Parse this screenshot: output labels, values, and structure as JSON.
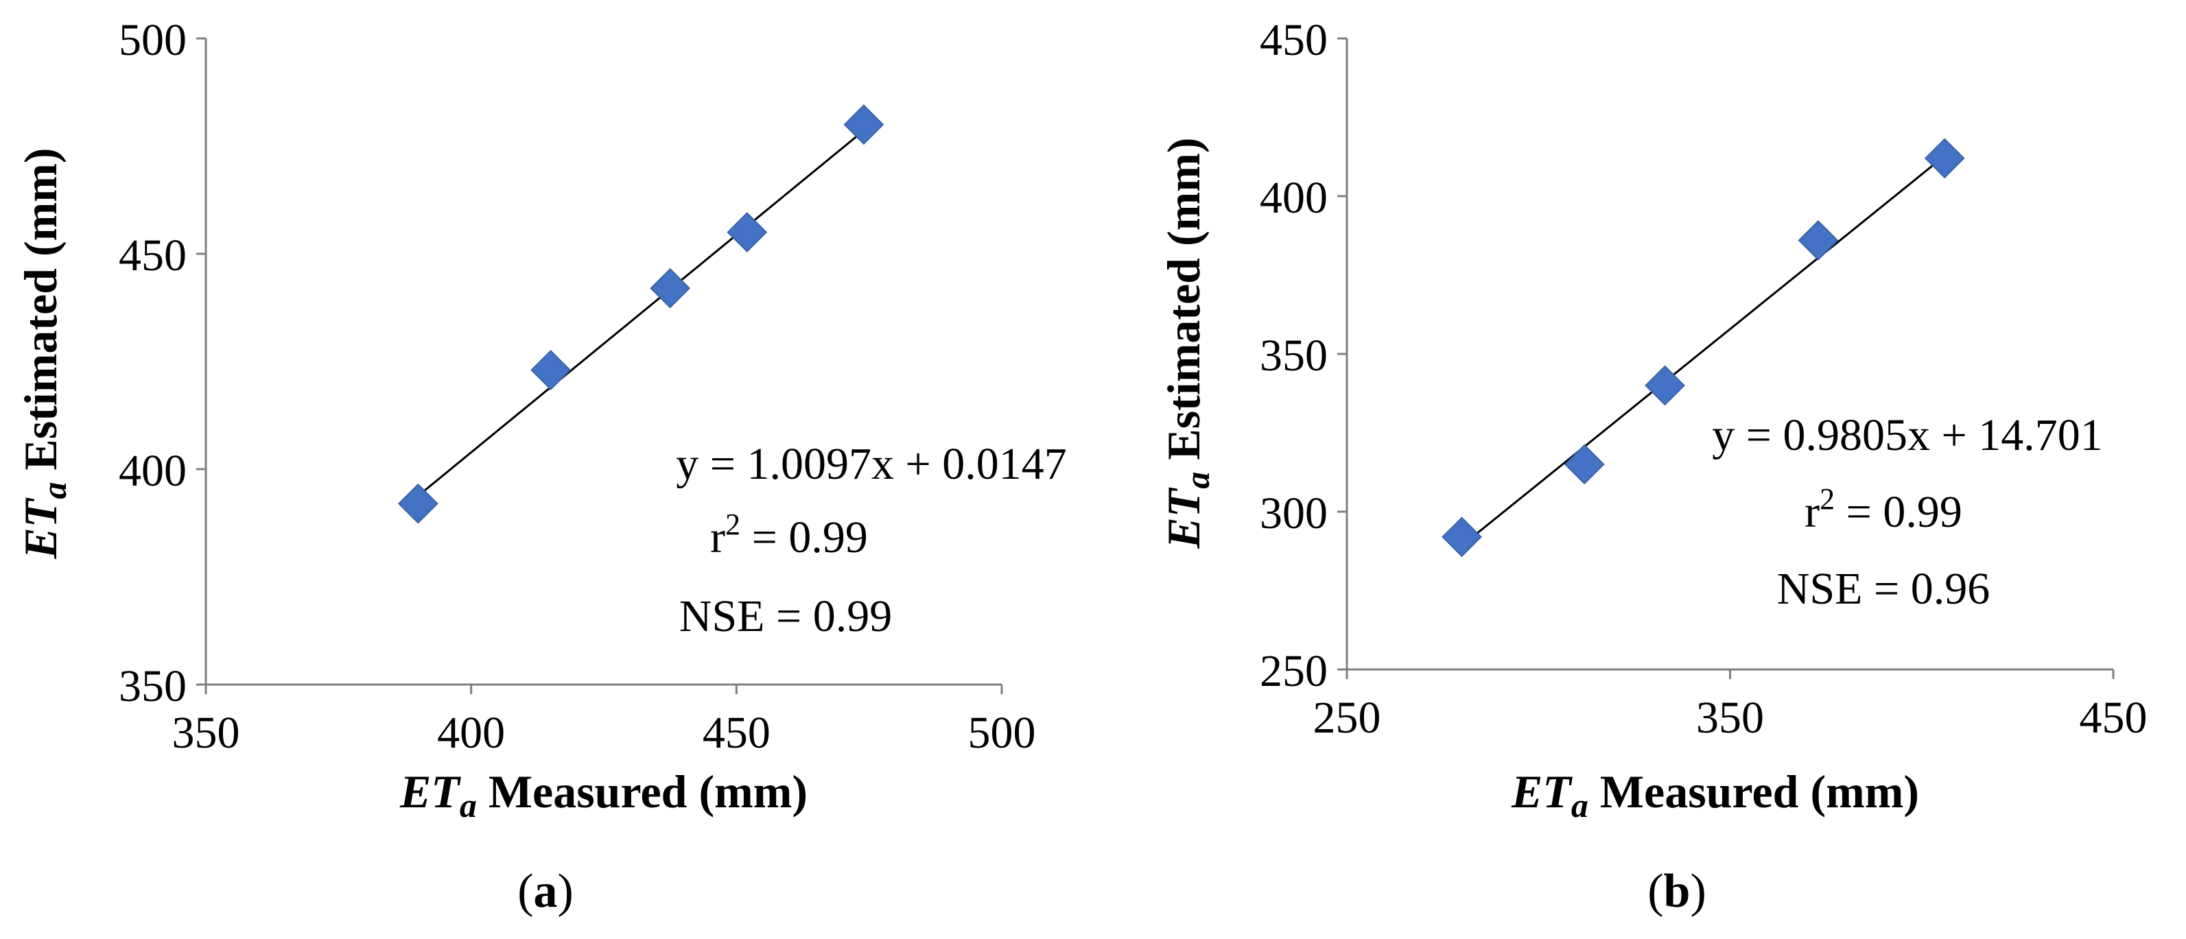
{
  "colors": {
    "marker": "#4472C4",
    "marker_edge": "#3A62A8",
    "trend_line": "#000000",
    "axis": "#7f7f7f"
  },
  "chart_data": [
    {
      "type": "scatter",
      "panel_label": {
        "open": "(",
        "letter": "a",
        "close": ")"
      },
      "xlabel": {
        "et": "ET",
        "sub": "a",
        "rest": " Measured (mm)"
      },
      "ylabel": {
        "et": "ET",
        "sub": "a",
        "rest": " Estimated (mm)"
      },
      "xlim": [
        350,
        500
      ],
      "ylim": [
        350,
        500
      ],
      "xticks": [
        350,
        400,
        450,
        500
      ],
      "yticks": [
        350,
        400,
        450,
        500
      ],
      "points": [
        {
          "x": 390,
          "y": 392
        },
        {
          "x": 415,
          "y": 423
        },
        {
          "x": 437.5,
          "y": 442
        },
        {
          "x": 452,
          "y": 455
        },
        {
          "x": 474,
          "y": 480
        }
      ],
      "trendline": {
        "slope": 1.0097,
        "intercept": 0.0147,
        "x_range": [
          390,
          474
        ]
      },
      "annotations": {
        "equation": "y = 1.0097x + 0.0147",
        "r2_prefix": "r",
        "r2_sup": "2",
        "r2_value": " = 0.99",
        "nse": "NSE = 0.99"
      }
    },
    {
      "type": "scatter",
      "panel_label": {
        "open": "(",
        "letter": "b",
        "close": ")"
      },
      "xlabel": {
        "et": "ET",
        "sub": "a",
        "rest": " Measured (mm)"
      },
      "ylabel": {
        "et": "ET",
        "sub": "a",
        "rest": " Estimated (mm)"
      },
      "xlim": [
        250,
        450
      ],
      "ylim": [
        250,
        450
      ],
      "xticks": [
        250,
        350,
        450
      ],
      "yticks": [
        250,
        300,
        350,
        400,
        450
      ],
      "points": [
        {
          "x": 280,
          "y": 292
        },
        {
          "x": 312,
          "y": 315
        },
        {
          "x": 333,
          "y": 340
        },
        {
          "x": 373,
          "y": 386
        },
        {
          "x": 406,
          "y": 412
        }
      ],
      "trendline": {
        "slope": 0.9805,
        "intercept": 14.701,
        "x_range": [
          280,
          406
        ]
      },
      "annotations": {
        "equation": "y = 0.9805x + 14.701",
        "r2_prefix": "r",
        "r2_sup": "2",
        "r2_value": " = 0.99",
        "nse": "NSE = 0.96"
      }
    }
  ]
}
